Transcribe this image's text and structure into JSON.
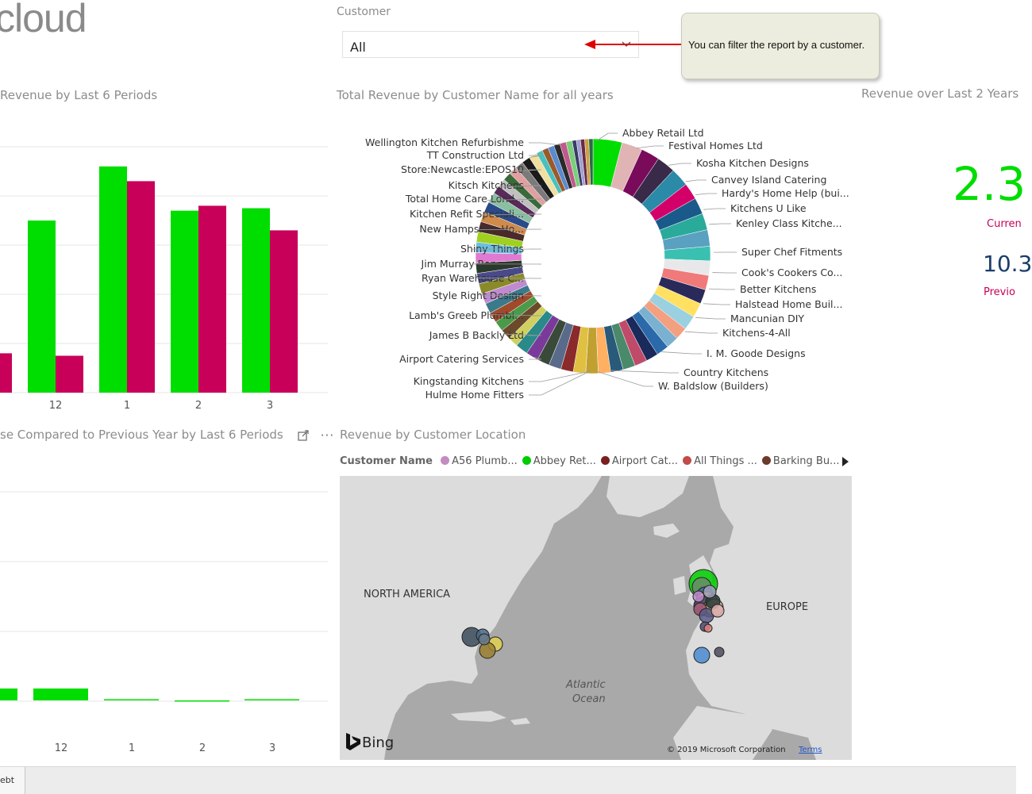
{
  "app": {
    "logo_text": "cloud"
  },
  "slicer": {
    "label": "Customer",
    "value": "All"
  },
  "callout": {
    "text": "You can filter the report by a customer."
  },
  "visuals": {
    "revenue_periods_title": "Revenue by Last 6 Periods",
    "donut_title": "Total Revenue by Customer Name for all years",
    "kpi_title": "Revenue over Last 2 Years",
    "increase_title": "se Compared to Previous Year by Last 6 Periods",
    "map_title": "Revenue by Customer Location"
  },
  "kpi": {
    "current_value": "2.3",
    "current_label": "Curren",
    "previous_value": "10.3",
    "previous_label": "Previo"
  },
  "colors": {
    "current": "#00dd00",
    "previous": "#c8005a",
    "axis_text": "#555555",
    "grid": "#e6e6e6"
  },
  "chart_data": [
    {
      "type": "bar",
      "title": "Revenue by Last 6 Periods",
      "categories": [
        "12",
        "1",
        "2",
        "3"
      ],
      "series": [
        {
          "color": "#00dd00",
          "values": [
            70,
            92,
            74,
            75
          ]
        },
        {
          "color": "#c8005a",
          "values": [
            15,
            86,
            76,
            66
          ]
        }
      ],
      "extra_partial_bar_left": 16,
      "ylim": [
        0,
        100
      ],
      "grid": true
    },
    {
      "type": "pie",
      "title": "Total Revenue by Customer Name for all years",
      "donut": true,
      "labels_left": [
        "Wellington Kitchen Refurbishme",
        "TT Construction Ltd",
        "Store:Newcastle:EPOS10",
        "Kitsch Kitchens",
        "Total Home Care Lond...",
        "Kitchen Refit Speciali...",
        "New Hampshire Ho...",
        "Shiny Things",
        "Jim Murray Renova...",
        "Ryan Warehouse C...",
        "Style Right Design",
        "Lamb's Greeb Plumbi...",
        "James B Backly Ltd",
        "Airport Catering Services",
        "Kingstanding Kitchens",
        "Hulme Home Fitters"
      ],
      "labels_right": [
        "Abbey Retail Ltd",
        "Festival Homes Ltd",
        "Kosha Kitchen Designs",
        "Canvey Island Catering",
        "Hardy's Home Help (bui...",
        "Kitchens U Like",
        "Kenley Class Kitche...",
        "Super Chef Fitments",
        "Cook's Cookers Co...",
        "Better Kitchens",
        "Halstead Home Buil...",
        "Mancunian DIY",
        "Kitchens-4-All",
        "I. M. Goode Designs",
        "Country Kitchens",
        "W. Baldslow (Builders)"
      ]
    },
    {
      "type": "bar",
      "title": "Increase Compared to Previous Year by Last 6 Periods",
      "categories": [
        "12",
        "1",
        "2",
        "3"
      ],
      "values": [
        5,
        0.5,
        -0.5,
        0.5
      ],
      "extra_partial_bar_left": 5,
      "color": "#00dd00",
      "ylim": [
        -10,
        100
      ],
      "grid": true
    }
  ],
  "map": {
    "legend_label": "Customer Name",
    "legend": [
      {
        "name": "A56 Plumb...",
        "color": "#c38bc0"
      },
      {
        "name": "Abbey Ret...",
        "color": "#00cc00"
      },
      {
        "name": "Airport Cat...",
        "color": "#7a1f1f"
      },
      {
        "name": "All Things ...",
        "color": "#c34a4a"
      },
      {
        "name": "Barking Bu...",
        "color": "#6b3a2a"
      }
    ],
    "labels": {
      "north_america": "NORTH AMERICA",
      "europe": "EUROPE",
      "ocean_line1": "Atlantic",
      "ocean_line2": "Ocean"
    },
    "bing": "Bing",
    "copyright": "© 2019 Microsoft Corporation",
    "terms": "Terms"
  },
  "status": {
    "tab_label": "ebt"
  },
  "icons": {
    "focus": "focus-mode-icon",
    "more": "more-options-icon"
  }
}
